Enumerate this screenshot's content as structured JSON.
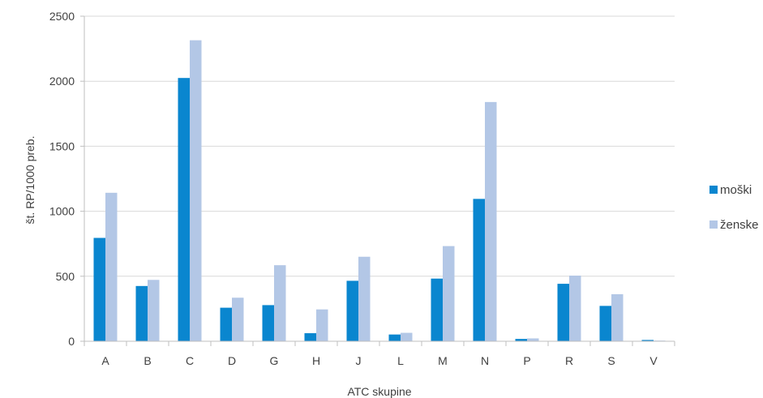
{
  "chart_data": {
    "type": "bar",
    "title": "",
    "xlabel": "ATC skupine",
    "ylabel": "št. RP/1000 preb.",
    "categories": [
      "A",
      "B",
      "C",
      "D",
      "G",
      "H",
      "J",
      "L",
      "M",
      "N",
      "P",
      "R",
      "S",
      "V"
    ],
    "series": [
      {
        "name": "moški",
        "color": "#0a86cf",
        "values": [
          795,
          425,
          2025,
          258,
          278,
          62,
          465,
          52,
          482,
          1095,
          18,
          442,
          272,
          10
        ]
      },
      {
        "name": "ženske",
        "color": "#b3c7e6",
        "values": [
          1142,
          472,
          2315,
          335,
          585,
          245,
          650,
          65,
          732,
          1840,
          22,
          505,
          362,
          5
        ]
      }
    ],
    "ylim": [
      0,
      2500
    ],
    "yticks": [
      0,
      500,
      1000,
      1500,
      2000,
      2500
    ],
    "grid": true,
    "legend": "right"
  }
}
